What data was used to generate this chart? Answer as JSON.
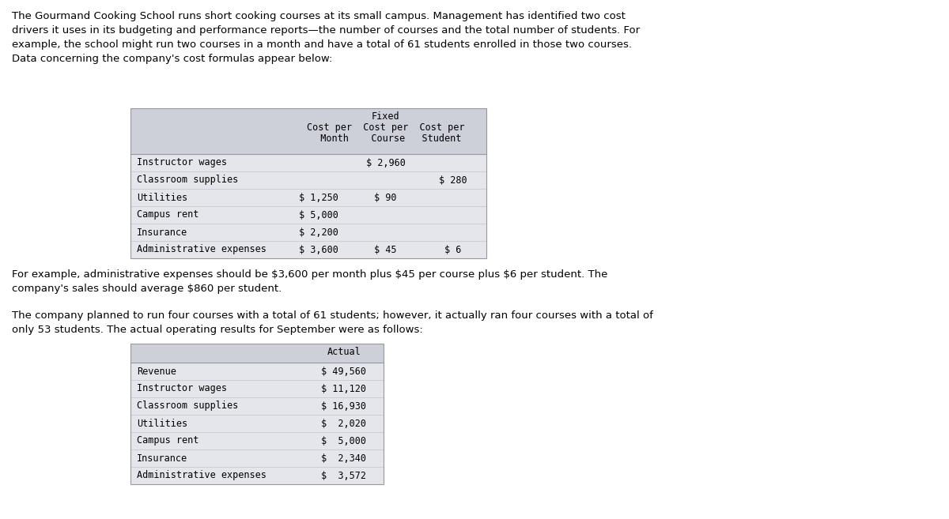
{
  "bg_color": "#ffffff",
  "intro_text": "The Gourmand Cooking School runs short cooking courses at its small campus. Management has identified two cost\ndrivers it uses in its budgeting and performance reports—the number of courses and the total number of students. For\nexample, the school might run two courses in a month and have a total of 61 students enrolled in those two courses.\nData concerning the company's cost formulas appear below:",
  "table1": {
    "header_bg": "#cdd0d9",
    "row_bg": "#e4e6ec",
    "col_header_line1": "Fixed",
    "col_header_line2": "Cost per  Cost per  Cost per",
    "col_header_line3": "  Month    Course   Student",
    "rows": [
      {
        "label": "Instructor wages",
        "fixed": "",
        "course": "$ 2,960",
        "student": ""
      },
      {
        "label": "Classroom supplies",
        "fixed": "",
        "course": "",
        "student": "$ 280"
      },
      {
        "label": "Utilities",
        "fixed": "$ 1,250",
        "course": "$ 90",
        "student": ""
      },
      {
        "label": "Campus rent",
        "fixed": "$ 5,000",
        "course": "",
        "student": ""
      },
      {
        "label": "Insurance",
        "fixed": "$ 2,200",
        "course": "",
        "student": ""
      },
      {
        "label": "Administrative expenses",
        "fixed": "$ 3,600",
        "course": "$ 45",
        "student": "$ 6"
      }
    ]
  },
  "middle_text1": "For example, administrative expenses should be $3,600 per month plus $45 per course plus $6 per student. The\ncompany's sales should average $860 per student.",
  "middle_text2": "The company planned to run four courses with a total of 61 students; however, it actually ran four courses with a total of\nonly 53 students. The actual operating results for September were as follows:",
  "table2": {
    "header_bg": "#cdd0d9",
    "row_bg": "#e4e6ec",
    "col_header": "Actual",
    "rows": [
      {
        "label": "Revenue",
        "actual": "$ 49,560"
      },
      {
        "label": "Instructor wages",
        "actual": "$ 11,120"
      },
      {
        "label": "Classroom supplies",
        "actual": "$ 16,930"
      },
      {
        "label": "Utilities",
        "actual": "$  2,020"
      },
      {
        "label": "Campus rent",
        "actual": "$  5,000"
      },
      {
        "label": "Insurance",
        "actual": "$  2,340"
      },
      {
        "label": "Administrative expenses",
        "actual": "$  3,572"
      }
    ]
  },
  "text_fontsize": 9.5,
  "mono_fontsize": 8.5,
  "hdr_fontsize": 8.5
}
